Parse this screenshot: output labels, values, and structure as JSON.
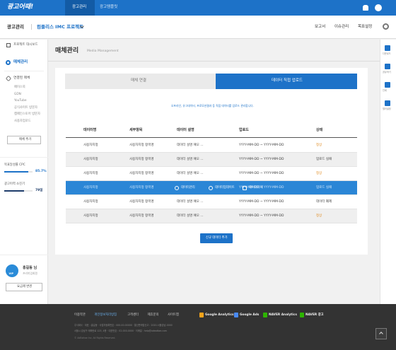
{
  "topbar": {
    "logo": "광고어때!",
    "tabs": [
      "광고관리",
      "광고템플릿"
    ]
  },
  "header": {
    "section": "광고관리",
    "project": "컴플리스 IMC 프로젝트",
    "menu": [
      "보고서",
      "이슈관리",
      "목표설정"
    ]
  },
  "sidebar": {
    "items": [
      "프로젝트 대시보드",
      "매체관리"
    ],
    "connected": {
      "title": "연결된 매체",
      "media": [
        "페이스북",
        "GDN",
        "YouTube",
        "공식사이트 방문자",
        "캠페인스토어 방문자",
        "사용자업로드"
      ]
    },
    "add_button": "매체 추가",
    "goal": {
      "label": "목표달성률 CPC",
      "value": "85.7%"
    },
    "budget": {
      "label": "광고이력 소진기",
      "value": "79일"
    },
    "user": {
      "badge": "VIP",
      "name": "홍길동 님",
      "grade": "프리미엄회원"
    },
    "plan_button": "요금제 변경"
  },
  "page": {
    "title": "매체관리",
    "subtitle": "Media Management",
    "tabs": [
      "매체 연결",
      "데이터 직접 업로드"
    ],
    "notice": "오프라인, 유그데이터, 프로모션결과 등 직접 데이터를 업로드 관리합니다.",
    "table": {
      "columns": [
        "데이터명",
        "세부항목",
        "데이터 설명",
        "업로드",
        "상태"
      ],
      "rows": [
        {
          "name": "사용자지정",
          "detail": "사용자지정 항목명",
          "desc": "데이터 설명 예오 ...",
          "period": "YYYY-MM-DD ~ YYYY-MM-DD",
          "status": "정상"
        },
        {
          "name": "사용자지정",
          "detail": "사용자지정 항목명",
          "desc": "데이터 설명 예오 ...",
          "period": "YYYY-MM-DD ~ YYYY-MM-DD",
          "status": "업로드 실패"
        },
        {
          "name": "사용자지정",
          "detail": "사용자지정 항목명",
          "desc": "데이터 설명 예오 ...",
          "period": "YYYY-MM-DD ~ YYYY-MM-DD",
          "status": "정상"
        },
        {
          "name": "사용자지정",
          "detail": "사용자지정 항목명",
          "actions": [
            "데이터관리",
            "데이터업데이트",
            "데이터삭제"
          ],
          "period": "YYYY-MM-DD ~ YYYY-MM-DD",
          "status": "업로드 실패"
        },
        {
          "name": "사용자지정",
          "detail": "사용자지정 항목명",
          "desc": "데이터 설명 예오 ...",
          "period": "YYYY-MM-DD ~ YYYY-MM-DD",
          "status": "데이터 폐제"
        },
        {
          "name": "사용자지정",
          "detail": "사용자지정 항목명",
          "desc": "데이터 설명 예오 ...",
          "period": "YYYY-MM-DD ~ YYYY-MM-DD",
          "status": "정상"
        }
      ]
    },
    "add_button": "신규 데이터 추가"
  },
  "rail": [
    "다운로드",
    "공유하기",
    "인쇄",
    "필터설정"
  ],
  "footer": {
    "links": [
      "이용약관",
      "개인정보처리방침",
      "고객센터",
      "제휴문의",
      "사이트맵"
    ],
    "partners": [
      "Google Analytics",
      "Google Ads",
      "NAVER Analytics",
      "NAVER 광고"
    ],
    "info": [
      "주식회사 · 대표 : 홍길동 · 사업자등록번호 : 000-00-00000 · 통신판매업신고 : 2020-서울강남-0000",
      "서울시 강남구 테헤란로 123, 4층 · 대표번호 : 02-000-0000 · 이메일 : help@adeottae.com"
    ],
    "copyright": "© AdEottae Inc. All Rights Reserved."
  }
}
